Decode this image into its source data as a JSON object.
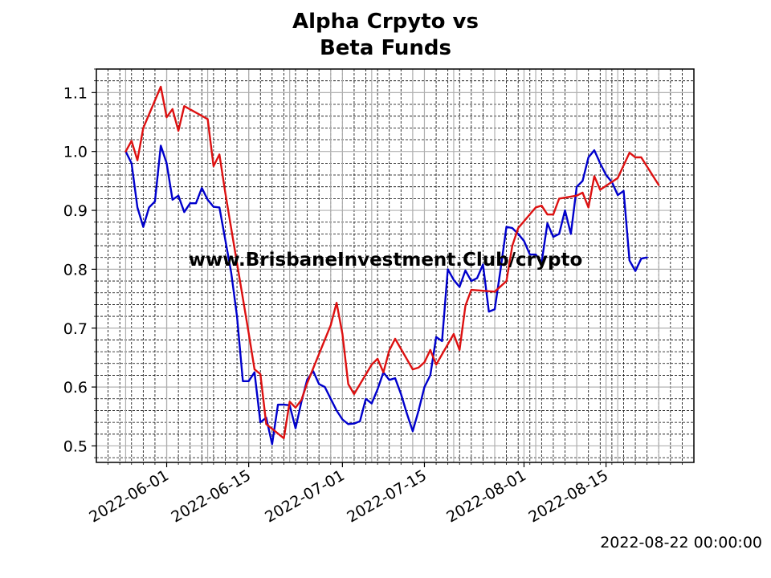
{
  "chart_data": {
    "type": "line",
    "title_lines": [
      "Alpha Crpyto vs",
      "Beta Funds"
    ],
    "watermark": "www.BrisbaneInvestment.Club/crypto",
    "xlabel": "",
    "ylabel": "",
    "x_axis_type": "date",
    "xlim": [
      "2022-05-20",
      "2022-08-30"
    ],
    "ylim": [
      0.472,
      1.14
    ],
    "x_ticks": [
      "2022-06-01",
      "2022-06-15",
      "2022-07-01",
      "2022-07-15",
      "2022-08-01",
      "2022-08-15"
    ],
    "y_ticks": [
      0.5,
      0.6,
      0.7,
      0.8,
      0.9,
      1.0,
      1.1
    ],
    "grid": true,
    "legend": "none",
    "series": [
      {
        "color": "#0000cc",
        "points": [
          [
            "2022-05-25",
            1.0
          ],
          [
            "2022-05-26",
            0.98
          ],
          [
            "2022-05-27",
            0.905
          ],
          [
            "2022-05-28",
            0.872
          ],
          [
            "2022-05-29",
            0.905
          ],
          [
            "2022-05-30",
            0.915
          ],
          [
            "2022-05-31",
            1.01
          ],
          [
            "2022-06-01",
            0.98
          ],
          [
            "2022-06-02",
            0.918
          ],
          [
            "2022-06-03",
            0.925
          ],
          [
            "2022-06-04",
            0.897
          ],
          [
            "2022-06-05",
            0.912
          ],
          [
            "2022-06-06",
            0.912
          ],
          [
            "2022-06-07",
            0.938
          ],
          [
            "2022-06-08",
            0.918
          ],
          [
            "2022-06-09",
            0.906
          ],
          [
            "2022-06-10",
            0.905
          ],
          [
            "2022-06-11",
            0.85
          ],
          [
            "2022-06-12",
            0.795
          ],
          [
            "2022-06-13",
            0.72
          ],
          [
            "2022-06-14",
            0.61
          ],
          [
            "2022-06-15",
            0.61
          ],
          [
            "2022-06-16",
            0.625
          ],
          [
            "2022-06-17",
            0.54
          ],
          [
            "2022-06-18",
            0.548
          ],
          [
            "2022-06-19",
            0.503
          ],
          [
            "2022-06-20",
            0.57
          ],
          [
            "2022-06-21",
            0.57
          ],
          [
            "2022-06-22",
            0.569
          ],
          [
            "2022-06-23",
            0.53
          ],
          [
            "2022-06-24",
            0.575
          ],
          [
            "2022-06-25",
            0.613
          ],
          [
            "2022-06-26",
            0.627
          ],
          [
            "2022-06-27",
            0.605
          ],
          [
            "2022-06-28",
            0.6
          ],
          [
            "2022-06-29",
            0.58
          ],
          [
            "2022-06-30",
            0.56
          ],
          [
            "2022-07-01",
            0.545
          ],
          [
            "2022-07-02",
            0.537
          ],
          [
            "2022-07-03",
            0.538
          ],
          [
            "2022-07-04",
            0.542
          ],
          [
            "2022-07-05",
            0.58
          ],
          [
            "2022-07-06",
            0.572
          ],
          [
            "2022-07-07",
            0.596
          ],
          [
            "2022-07-08",
            0.625
          ],
          [
            "2022-07-09",
            0.612
          ],
          [
            "2022-07-10",
            0.615
          ],
          [
            "2022-07-11",
            0.588
          ],
          [
            "2022-07-12",
            0.555
          ],
          [
            "2022-07-13",
            0.525
          ],
          [
            "2022-07-14",
            0.56
          ],
          [
            "2022-07-15",
            0.6
          ],
          [
            "2022-07-16",
            0.62
          ],
          [
            "2022-07-17",
            0.685
          ],
          [
            "2022-07-18",
            0.678
          ],
          [
            "2022-07-19",
            0.8
          ],
          [
            "2022-07-20",
            0.782
          ],
          [
            "2022-07-21",
            0.77
          ],
          [
            "2022-07-22",
            0.798
          ],
          [
            "2022-07-23",
            0.78
          ],
          [
            "2022-07-24",
            0.785
          ],
          [
            "2022-07-25",
            0.808
          ],
          [
            "2022-07-26",
            0.728
          ],
          [
            "2022-07-27",
            0.732
          ],
          [
            "2022-07-28",
            0.8
          ],
          [
            "2022-07-29",
            0.872
          ],
          [
            "2022-07-30",
            0.87
          ],
          [
            "2022-07-31",
            0.86
          ],
          [
            "2022-08-01",
            0.848
          ],
          [
            "2022-08-02",
            0.825
          ],
          [
            "2022-08-03",
            0.825
          ],
          [
            "2022-08-04",
            0.812
          ],
          [
            "2022-08-05",
            0.878
          ],
          [
            "2022-08-06",
            0.855
          ],
          [
            "2022-08-07",
            0.86
          ],
          [
            "2022-08-08",
            0.9
          ],
          [
            "2022-08-09",
            0.86
          ],
          [
            "2022-08-10",
            0.94
          ],
          [
            "2022-08-11",
            0.95
          ],
          [
            "2022-08-12",
            0.99
          ],
          [
            "2022-08-13",
            1.002
          ],
          [
            "2022-08-14",
            0.98
          ],
          [
            "2022-08-15",
            0.96
          ],
          [
            "2022-08-16",
            0.948
          ],
          [
            "2022-08-17",
            0.926
          ],
          [
            "2022-08-18",
            0.933
          ],
          [
            "2022-08-19",
            0.815
          ],
          [
            "2022-08-20",
            0.797
          ],
          [
            "2022-08-21",
            0.818
          ],
          [
            "2022-08-22",
            0.82
          ]
        ]
      },
      {
        "color": "#dd1111",
        "points": [
          [
            "2022-05-25",
            1.0
          ],
          [
            "2022-05-26",
            1.018
          ],
          [
            "2022-05-27",
            0.985
          ],
          [
            "2022-05-28",
            1.04
          ],
          [
            "2022-05-31",
            1.11
          ],
          [
            "2022-06-01",
            1.058
          ],
          [
            "2022-06-02",
            1.072
          ],
          [
            "2022-06-03",
            1.035
          ],
          [
            "2022-06-04",
            1.077
          ],
          [
            "2022-06-08",
            1.055
          ],
          [
            "2022-06-09",
            0.975
          ],
          [
            "2022-06-10",
            0.995
          ],
          [
            "2022-06-11",
            0.93
          ],
          [
            "2022-06-12",
            0.87
          ],
          [
            "2022-06-15",
            0.692
          ],
          [
            "2022-06-16",
            0.63
          ],
          [
            "2022-06-17",
            0.622
          ],
          [
            "2022-06-18",
            0.537
          ],
          [
            "2022-06-21",
            0.513
          ],
          [
            "2022-06-22",
            0.575
          ],
          [
            "2022-06-23",
            0.565
          ],
          [
            "2022-06-24",
            0.578
          ],
          [
            "2022-06-25",
            0.607
          ],
          [
            "2022-06-29",
            0.705
          ],
          [
            "2022-06-30",
            0.743
          ],
          [
            "2022-07-01",
            0.69
          ],
          [
            "2022-07-02",
            0.605
          ],
          [
            "2022-07-03",
            0.588
          ],
          [
            "2022-07-06",
            0.638
          ],
          [
            "2022-07-07",
            0.648
          ],
          [
            "2022-07-08",
            0.625
          ],
          [
            "2022-07-09",
            0.662
          ],
          [
            "2022-07-10",
            0.682
          ],
          [
            "2022-07-13",
            0.63
          ],
          [
            "2022-07-14",
            0.633
          ],
          [
            "2022-07-15",
            0.642
          ],
          [
            "2022-07-16",
            0.663
          ],
          [
            "2022-07-17",
            0.638
          ],
          [
            "2022-07-20",
            0.69
          ],
          [
            "2022-07-21",
            0.663
          ],
          [
            "2022-07-22",
            0.738
          ],
          [
            "2022-07-23",
            0.765
          ],
          [
            "2022-07-27",
            0.762
          ],
          [
            "2022-07-29",
            0.78
          ],
          [
            "2022-07-30",
            0.84
          ],
          [
            "2022-07-31",
            0.87
          ],
          [
            "2022-08-03",
            0.905
          ],
          [
            "2022-08-04",
            0.908
          ],
          [
            "2022-08-05",
            0.893
          ],
          [
            "2022-08-06",
            0.893
          ],
          [
            "2022-08-07",
            0.92
          ],
          [
            "2022-08-10",
            0.925
          ],
          [
            "2022-08-11",
            0.93
          ],
          [
            "2022-08-12",
            0.905
          ],
          [
            "2022-08-13",
            0.958
          ],
          [
            "2022-08-14",
            0.935
          ],
          [
            "2022-08-17",
            0.955
          ],
          [
            "2022-08-19",
            0.998
          ],
          [
            "2022-08-20",
            0.99
          ],
          [
            "2022-08-21",
            0.99
          ],
          [
            "2022-08-24",
            0.943
          ]
        ]
      }
    ]
  },
  "footer_timestamp": "2022-08-22 00:00:00"
}
